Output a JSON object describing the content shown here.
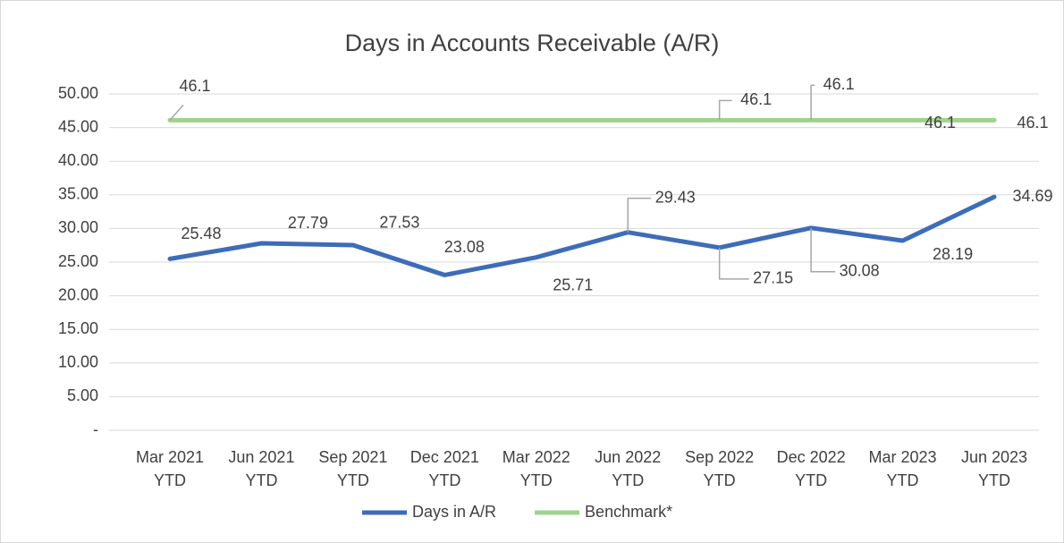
{
  "chart_data": {
    "type": "line",
    "title": "Days in Accounts Receivable (A/R)",
    "categories": [
      "Mar 2021 YTD",
      "Jun 2021 YTD",
      "Sep 2021 YTD",
      "Dec 2021 YTD",
      "Mar 2022 YTD",
      "Jun 2022 YTD",
      "Sep 2022 YTD",
      "Dec 2022 YTD",
      "Mar 2023 YTD",
      "Jun 2023 YTD"
    ],
    "series": [
      {
        "name": "Days in A/R",
        "color": "#3d6cb9",
        "values": [
          25.48,
          27.79,
          27.53,
          23.08,
          25.71,
          29.43,
          27.15,
          30.08,
          28.19,
          34.69
        ]
      },
      {
        "name": "Benchmark*",
        "color": "#a0d28d",
        "values": [
          46.1,
          46.1,
          46.1,
          46.1,
          46.1,
          46.1,
          46.1,
          46.1,
          46.1,
          46.1
        ],
        "value_labels": [
          "46.1",
          null,
          null,
          null,
          null,
          null,
          "46.1",
          "46.1",
          "46.1",
          "46.1"
        ]
      }
    ],
    "ylim": [
      0,
      50
    ],
    "yticks": [
      {
        "value": 0,
        "label": "-"
      },
      {
        "value": 5,
        "label": "5.00"
      },
      {
        "value": 10,
        "label": "10.00"
      },
      {
        "value": 15,
        "label": "15.00"
      },
      {
        "value": 20,
        "label": "20.00"
      },
      {
        "value": 25,
        "label": "25.00"
      },
      {
        "value": 30,
        "label": "30.00"
      },
      {
        "value": 35,
        "label": "35.00"
      },
      {
        "value": 40,
        "label": "40.00"
      },
      {
        "value": 45,
        "label": "45.00"
      },
      {
        "value": 50,
        "label": "50.00"
      }
    ],
    "grid": true,
    "legend": "bottom"
  }
}
